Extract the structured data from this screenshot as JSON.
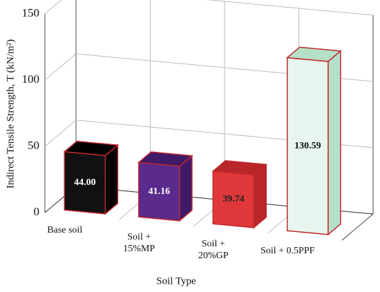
{
  "chart_data": {
    "type": "bar3d",
    "y_label": "Indirect Tensile Strength, T (kN/m²)",
    "x_label": "Soil Type",
    "categories": [
      "Base soil",
      "Soil + 15%MP",
      "Soil + 20%GP",
      "Soil + 0.5PPF"
    ],
    "values": [
      44.0,
      41.16,
      39.74,
      130.59
    ],
    "value_labels": [
      "44.00",
      "41.16",
      "39.74",
      "130.59"
    ],
    "colors": [
      "#111111",
      "#5a2a8c",
      "#e0383a",
      "#e8f5ee"
    ],
    "side_colors": [
      "#000000",
      "#3f1a68",
      "#b8262a",
      "#b5e0c8"
    ],
    "edge_color": "#c0282c",
    "value_label_colors": [
      "#ffffff",
      "#ffffff",
      "#222222",
      "#111111"
    ],
    "ylim": [
      0,
      150
    ],
    "yticks": [
      0,
      50,
      100,
      150
    ],
    "grid": true
  }
}
